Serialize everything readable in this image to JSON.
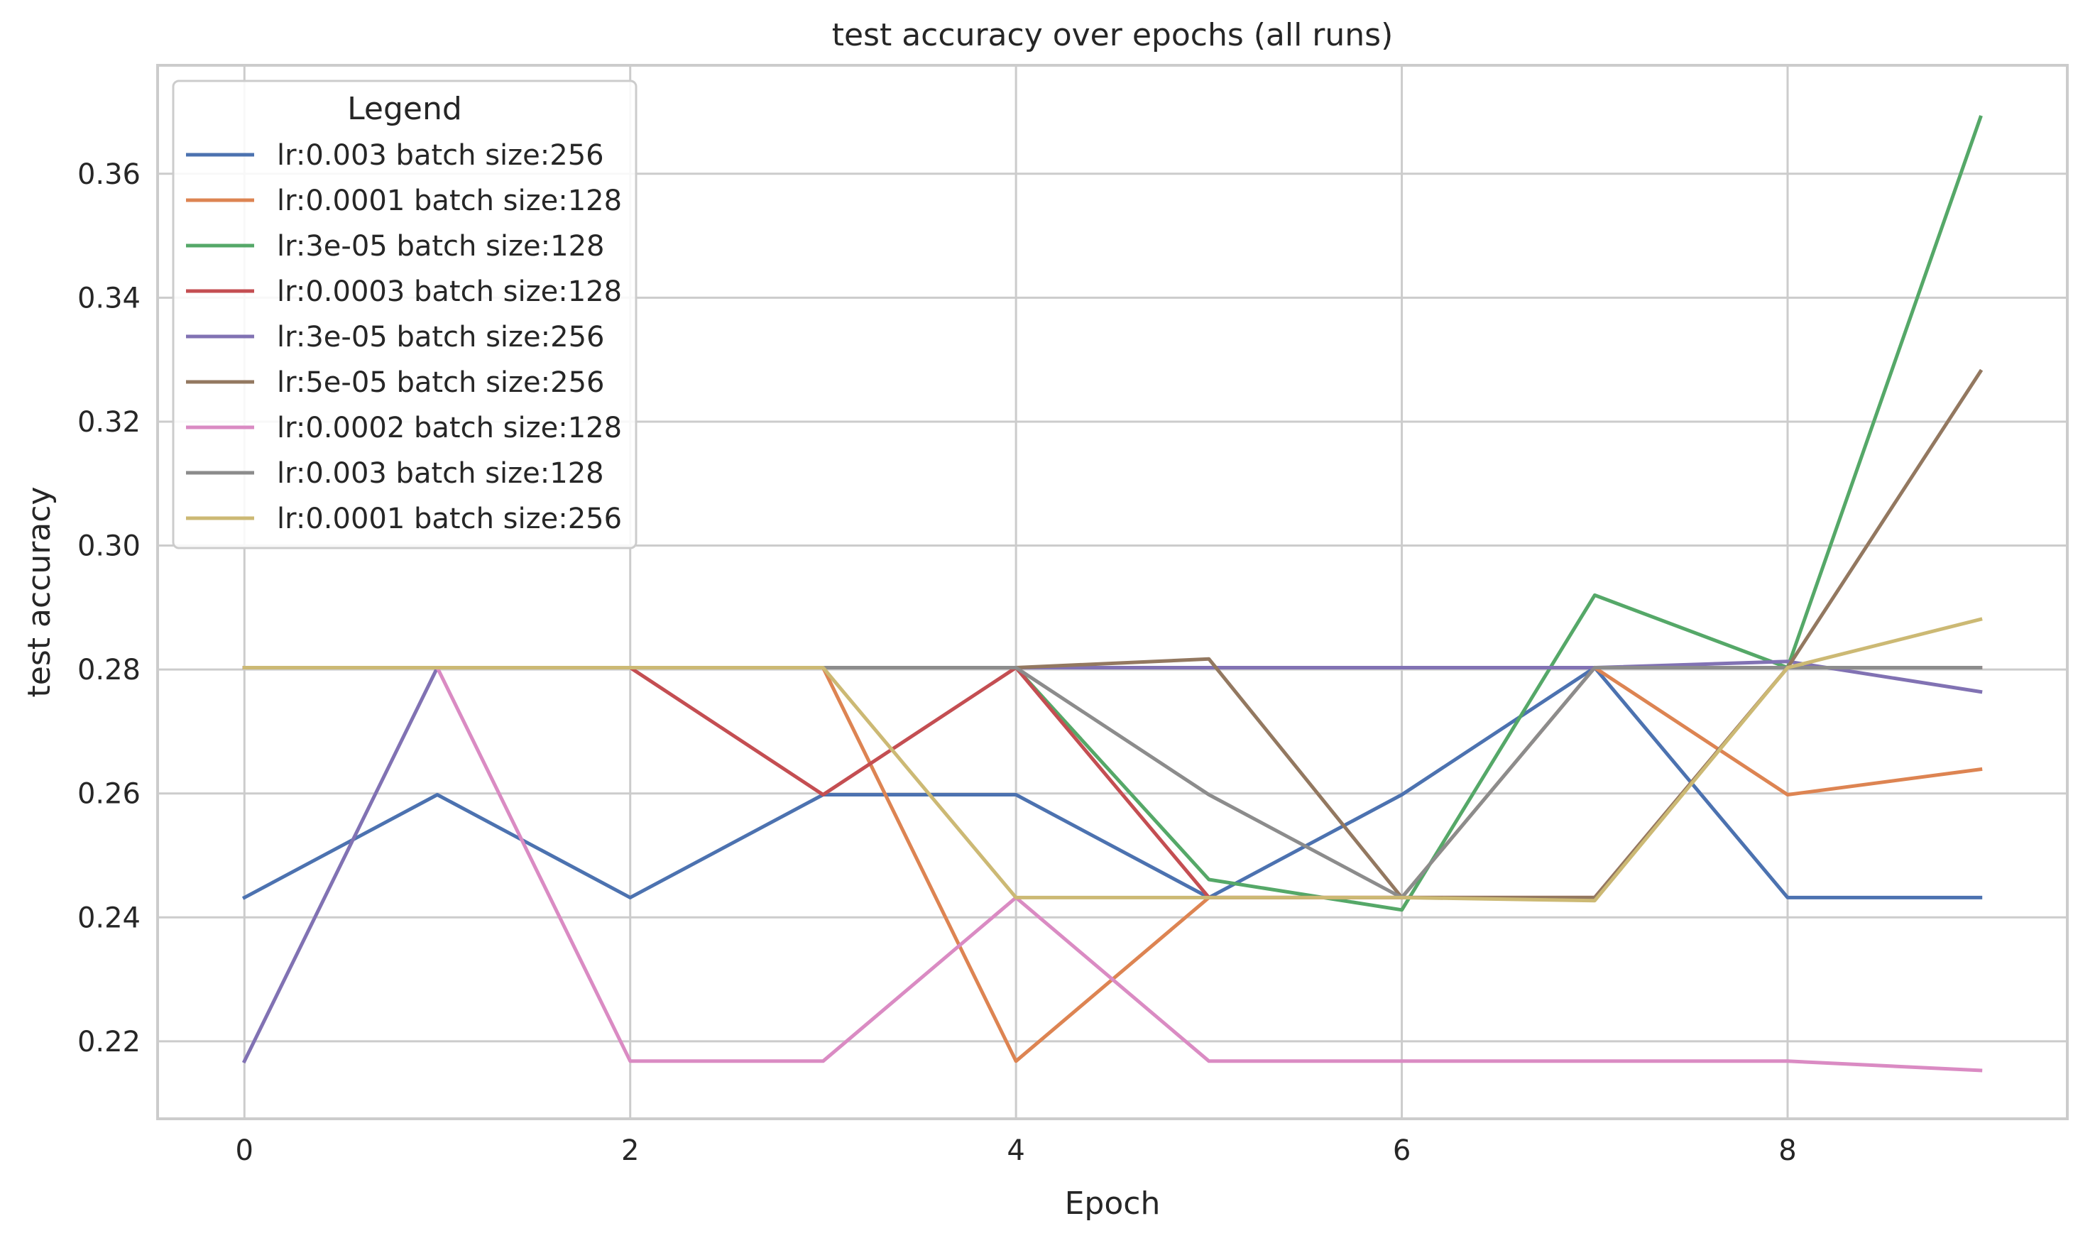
{
  "chart_data": {
    "type": "line",
    "title": "test accuracy over epochs (all runs)",
    "xlabel": "Epoch",
    "ylabel": "test accuracy",
    "xlim": [
      -0.45,
      9.45
    ],
    "ylim": [
      0.2075,
      0.3775
    ],
    "xticks": [
      0,
      2,
      4,
      6,
      8
    ],
    "yticks": [
      0.22,
      0.24,
      0.26,
      0.28,
      0.3,
      0.32,
      0.34,
      0.36
    ],
    "ytick_labels": [
      "0.22",
      "0.24",
      "0.26",
      "0.28",
      "0.30",
      "0.32",
      "0.34",
      "0.36"
    ],
    "grid": true,
    "legend": {
      "title": "Legend",
      "placement": "top-left"
    },
    "x": [
      0,
      1,
      2,
      3,
      4,
      5,
      6,
      7,
      8,
      9
    ],
    "series": [
      {
        "name": "lr:0.003 batch size:256",
        "color": "#4c72b0",
        "values": [
          0.2432,
          0.2598,
          0.2432,
          0.2598,
          0.2598,
          0.2432,
          0.2598,
          0.2803,
          0.2432,
          0.2432
        ]
      },
      {
        "name": "lr:0.0001 batch size:128",
        "color": "#dd8452",
        "values": [
          0.2803,
          0.2803,
          0.2803,
          0.2803,
          0.2168,
          0.2432,
          0.2432,
          0.2803,
          0.2598,
          0.2639
        ]
      },
      {
        "name": "lr:3e-05 batch size:128",
        "color": "#55a868",
        "values": [
          0.2803,
          0.2803,
          0.2803,
          0.2803,
          0.2803,
          0.2461,
          0.2412,
          0.292,
          0.2803,
          0.3691
        ]
      },
      {
        "name": "lr:0.0003 batch size:128",
        "color": "#c44e52",
        "values": [
          0.2803,
          0.2803,
          0.2803,
          0.2598,
          0.2803,
          0.2432,
          0.2432,
          0.2432,
          0.2803,
          0.2803
        ]
      },
      {
        "name": "lr:3e-05 batch size:256",
        "color": "#8172b3",
        "values": [
          0.2168,
          0.2803,
          0.2803,
          0.2803,
          0.2803,
          0.2803,
          0.2803,
          0.2803,
          0.2813,
          0.2764
        ]
      },
      {
        "name": "lr:5e-05 batch size:256",
        "color": "#937860",
        "values": [
          0.2803,
          0.2803,
          0.2803,
          0.2803,
          0.2803,
          0.2817,
          0.2432,
          0.2432,
          0.2803,
          0.3281
        ]
      },
      {
        "name": "lr:0.0002 batch size:128",
        "color": "#da8bc3",
        "values": [
          0.2803,
          0.2803,
          0.2168,
          0.2168,
          0.2432,
          0.2168,
          0.2168,
          0.2168,
          0.2168,
          0.2153
        ]
      },
      {
        "name": "lr:0.003 batch size:128",
        "color": "#8c8c8c",
        "values": [
          0.2803,
          0.2803,
          0.2803,
          0.2803,
          0.2803,
          0.2598,
          0.2432,
          0.2803,
          0.2803,
          0.2803
        ]
      },
      {
        "name": "lr:0.0001 batch size:256",
        "color": "#ccb974",
        "values": [
          0.2803,
          0.2803,
          0.2803,
          0.2803,
          0.2432,
          0.2432,
          0.2432,
          0.2427,
          0.2803,
          0.2881
        ]
      }
    ]
  }
}
